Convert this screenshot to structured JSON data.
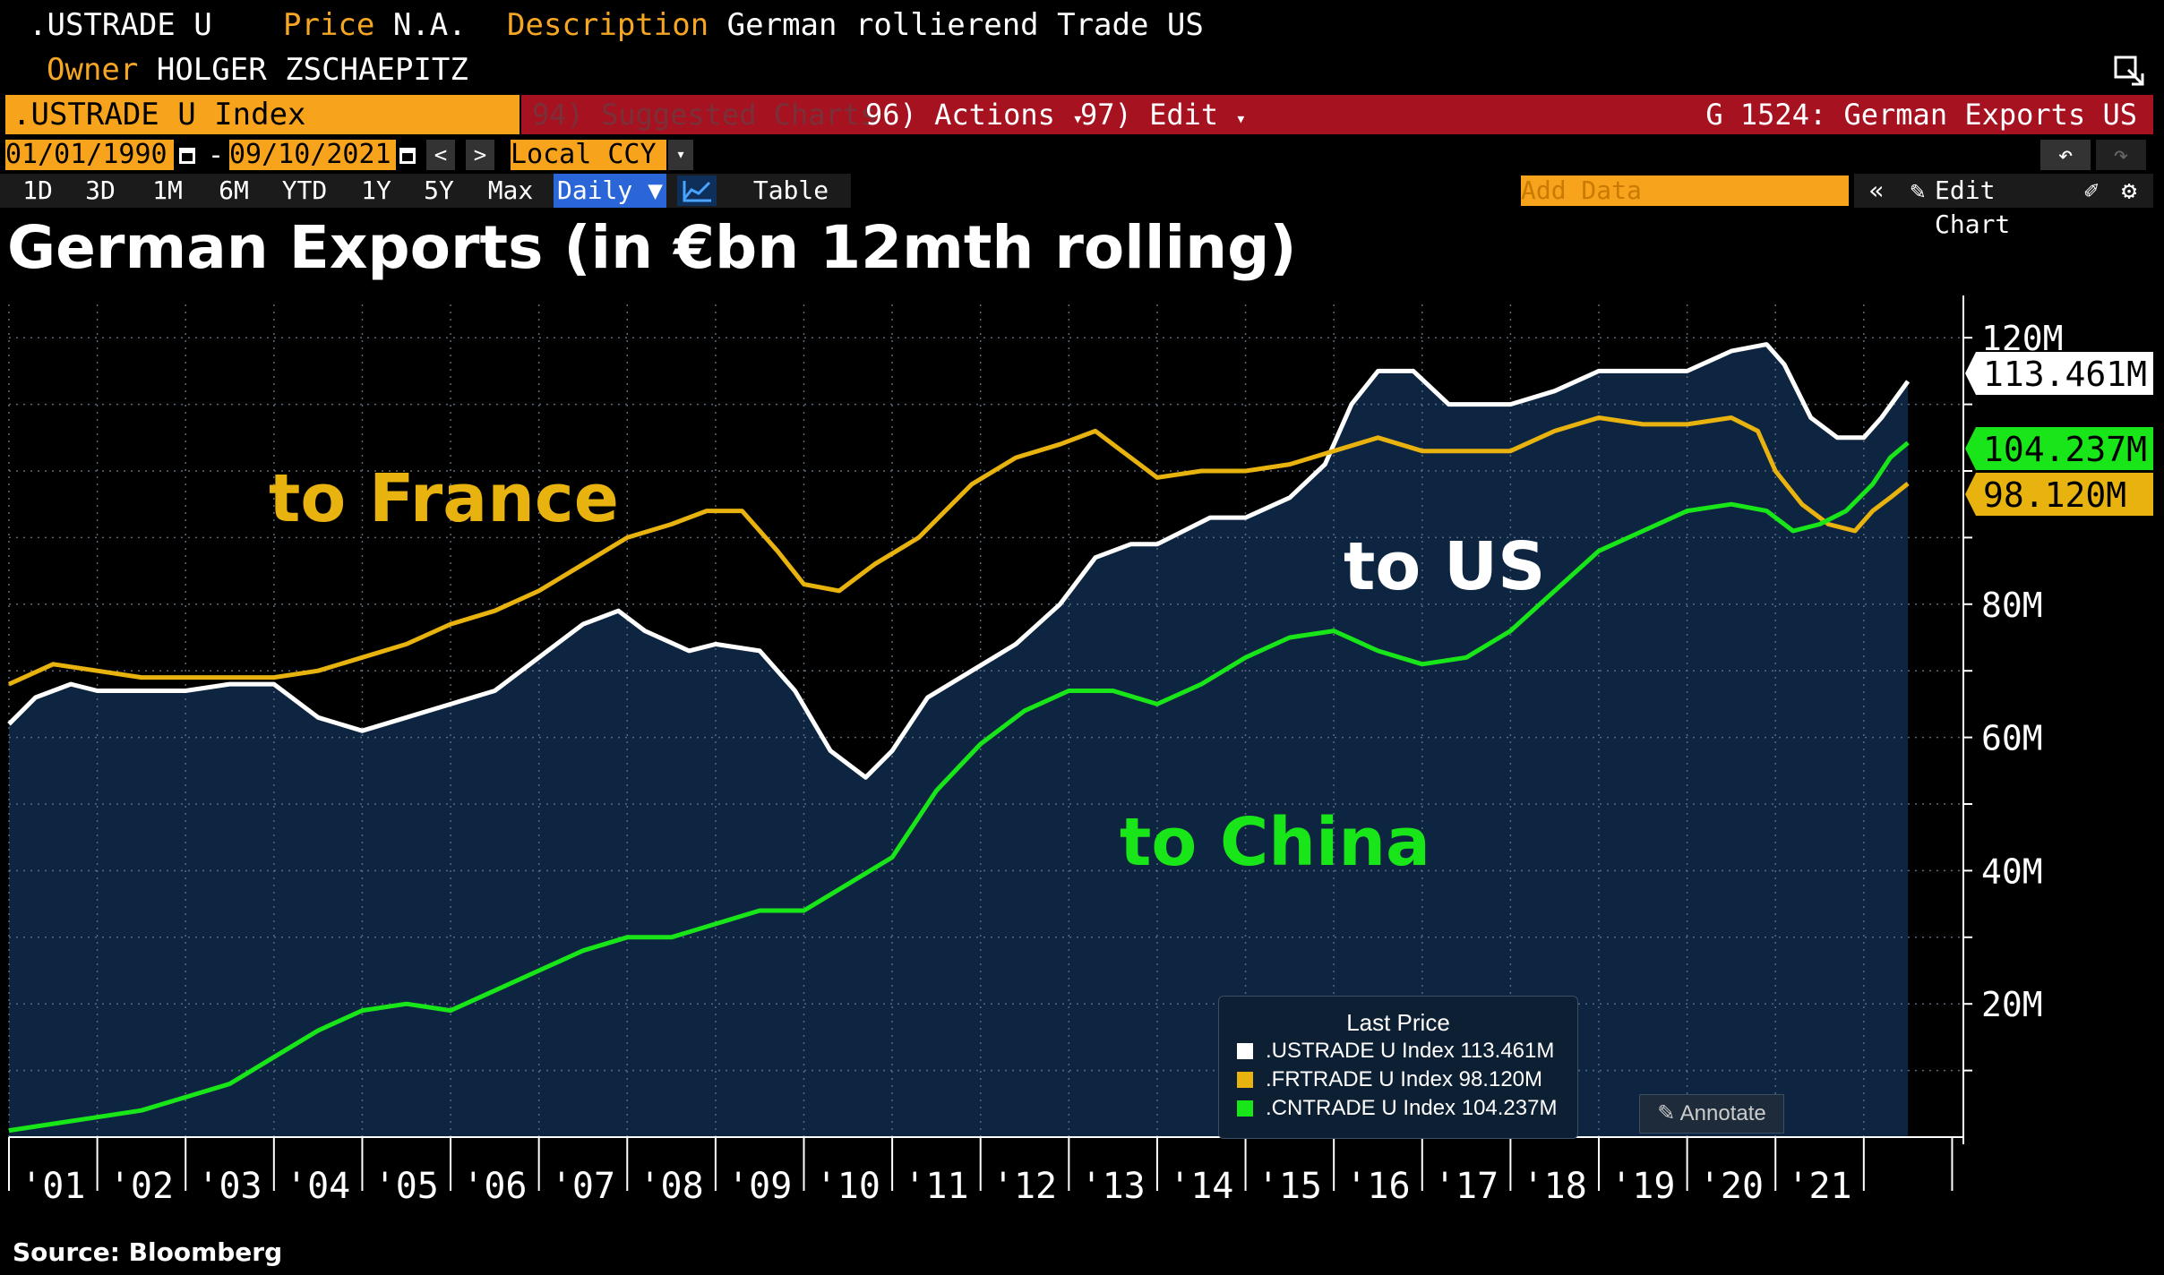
{
  "header": {
    "ticker": ".USTRADE U",
    "price_key": "Price",
    "price_value": "N.A.",
    "desc_key": "Description",
    "desc_value": "German rollierend Trade US",
    "owner_key": "Owner",
    "owner_value": "HOLGER ZSCHAEPITZ"
  },
  "commandbar": {
    "security": ".USTRADE U Index",
    "suggested": "94) Suggested Charts",
    "actions": "96) Actions",
    "edit": "97) Edit",
    "chart_id": "G 1524: German Exports US"
  },
  "datebar": {
    "start": "01/01/1990",
    "sep": "-",
    "end": "09/10/2021",
    "currency": "Local CCY"
  },
  "toolbar": {
    "periods": [
      "1D",
      "3D",
      "1M",
      "6M",
      "YTD",
      "1Y",
      "5Y",
      "Max"
    ],
    "frequency": "Daily ▼",
    "table": "Table",
    "add_data_placeholder": "Add Data",
    "edit_chart": "Edit Chart"
  },
  "chart_title": "German Exports (in €bn 12mth rolling)",
  "colors": {
    "background": "#000000",
    "plot_area": "#0d2540",
    "orange_field": "#f7a31c",
    "red_bar": "#a6121f",
    "us": "#ffffff",
    "france": "#e8b20f",
    "china": "#19e619"
  },
  "chart_data": {
    "type": "line",
    "x_ticks": [
      "'01",
      "'02",
      "'03",
      "'04",
      "'05",
      "'06",
      "'07",
      "'08",
      "'09",
      "'10",
      "'11",
      "'12",
      "'13",
      "'14",
      "'15",
      "'16",
      "'17",
      "'18",
      "'19",
      "'20",
      "'21"
    ],
    "y_ticks": [
      "20M",
      "40M",
      "60M",
      "80M",
      "120M"
    ],
    "ylim": [
      0,
      125
    ],
    "xlim": [
      2000.0,
      2021.6
    ],
    "grid": true,
    "series": [
      {
        "name": ".USTRADE U Index",
        "color": "#ffffff",
        "last_label": "113.461M",
        "points": [
          [
            2000.0,
            62
          ],
          [
            2000.3,
            66
          ],
          [
            2000.7,
            68
          ],
          [
            2001.0,
            67
          ],
          [
            2001.5,
            67
          ],
          [
            2002.0,
            67
          ],
          [
            2002.5,
            68
          ],
          [
            2003.0,
            68
          ],
          [
            2003.5,
            63
          ],
          [
            2004.0,
            61
          ],
          [
            2004.5,
            63
          ],
          [
            2005.0,
            65
          ],
          [
            2005.5,
            67
          ],
          [
            2006.0,
            72
          ],
          [
            2006.5,
            77
          ],
          [
            2006.9,
            79
          ],
          [
            2007.2,
            76
          ],
          [
            2007.7,
            73
          ],
          [
            2008.0,
            74
          ],
          [
            2008.5,
            73
          ],
          [
            2008.9,
            67
          ],
          [
            2009.3,
            58
          ],
          [
            2009.7,
            54
          ],
          [
            2010.0,
            58
          ],
          [
            2010.4,
            66
          ],
          [
            2010.9,
            70
          ],
          [
            2011.4,
            74
          ],
          [
            2011.9,
            80
          ],
          [
            2012.3,
            87
          ],
          [
            2012.7,
            89
          ],
          [
            2013.0,
            89
          ],
          [
            2013.6,
            93
          ],
          [
            2014.0,
            93
          ],
          [
            2014.5,
            96
          ],
          [
            2014.9,
            101
          ],
          [
            2015.2,
            110
          ],
          [
            2015.5,
            115
          ],
          [
            2015.9,
            115
          ],
          [
            2016.3,
            110
          ],
          [
            2016.7,
            110
          ],
          [
            2017.0,
            110
          ],
          [
            2017.5,
            112
          ],
          [
            2018.0,
            115
          ],
          [
            2018.5,
            115
          ],
          [
            2019.0,
            115
          ],
          [
            2019.5,
            118
          ],
          [
            2019.9,
            119
          ],
          [
            2020.1,
            116
          ],
          [
            2020.4,
            108
          ],
          [
            2020.7,
            105
          ],
          [
            2021.0,
            105
          ],
          [
            2021.2,
            108
          ],
          [
            2021.5,
            113.461
          ]
        ]
      },
      {
        "name": ".FRTRADE U Index",
        "color": "#e8b20f",
        "last_label": "98.120M",
        "points": [
          [
            2000.0,
            68
          ],
          [
            2000.5,
            71
          ],
          [
            2001.0,
            70
          ],
          [
            2001.5,
            69
          ],
          [
            2002.0,
            69
          ],
          [
            2002.5,
            69
          ],
          [
            2003.0,
            69
          ],
          [
            2003.5,
            70
          ],
          [
            2004.0,
            72
          ],
          [
            2004.5,
            74
          ],
          [
            2005.0,
            77
          ],
          [
            2005.5,
            79
          ],
          [
            2006.0,
            82
          ],
          [
            2006.5,
            86
          ],
          [
            2007.0,
            90
          ],
          [
            2007.5,
            92
          ],
          [
            2007.9,
            94
          ],
          [
            2008.3,
            94
          ],
          [
            2008.7,
            88
          ],
          [
            2009.0,
            83
          ],
          [
            2009.4,
            82
          ],
          [
            2009.8,
            86
          ],
          [
            2010.3,
            90
          ],
          [
            2010.9,
            98
          ],
          [
            2011.4,
            102
          ],
          [
            2011.9,
            104
          ],
          [
            2012.3,
            106
          ],
          [
            2012.6,
            103
          ],
          [
            2013.0,
            99
          ],
          [
            2013.5,
            100
          ],
          [
            2014.0,
            100
          ],
          [
            2014.5,
            101
          ],
          [
            2015.0,
            103
          ],
          [
            2015.5,
            105
          ],
          [
            2016.0,
            103
          ],
          [
            2016.5,
            103
          ],
          [
            2017.0,
            103
          ],
          [
            2017.5,
            106
          ],
          [
            2018.0,
            108
          ],
          [
            2018.5,
            107
          ],
          [
            2019.0,
            107
          ],
          [
            2019.5,
            108
          ],
          [
            2019.8,
            106
          ],
          [
            2020.0,
            100
          ],
          [
            2020.3,
            95
          ],
          [
            2020.6,
            92
          ],
          [
            2020.9,
            91
          ],
          [
            2021.1,
            94
          ],
          [
            2021.3,
            96
          ],
          [
            2021.5,
            98.12
          ]
        ]
      },
      {
        "name": ".CNTRADE U Index",
        "color": "#19e619",
        "last_label": "104.237M",
        "points": [
          [
            2000.0,
            1
          ],
          [
            2000.5,
            2
          ],
          [
            2001.0,
            3
          ],
          [
            2001.5,
            4
          ],
          [
            2002.0,
            6
          ],
          [
            2002.5,
            8
          ],
          [
            2003.0,
            12
          ],
          [
            2003.5,
            16
          ],
          [
            2004.0,
            19
          ],
          [
            2004.5,
            20
          ],
          [
            2005.0,
            19
          ],
          [
            2005.5,
            22
          ],
          [
            2006.0,
            25
          ],
          [
            2006.5,
            28
          ],
          [
            2007.0,
            30
          ],
          [
            2007.5,
            30
          ],
          [
            2008.0,
            32
          ],
          [
            2008.5,
            34
          ],
          [
            2009.0,
            34
          ],
          [
            2009.5,
            38
          ],
          [
            2010.0,
            42
          ],
          [
            2010.5,
            52
          ],
          [
            2011.0,
            59
          ],
          [
            2011.5,
            64
          ],
          [
            2012.0,
            67
          ],
          [
            2012.5,
            67
          ],
          [
            2013.0,
            65
          ],
          [
            2013.5,
            68
          ],
          [
            2014.0,
            72
          ],
          [
            2014.5,
            75
          ],
          [
            2015.0,
            76
          ],
          [
            2015.5,
            73
          ],
          [
            2016.0,
            71
          ],
          [
            2016.5,
            72
          ],
          [
            2017.0,
            76
          ],
          [
            2017.5,
            82
          ],
          [
            2018.0,
            88
          ],
          [
            2018.5,
            91
          ],
          [
            2019.0,
            94
          ],
          [
            2019.5,
            95
          ],
          [
            2019.9,
            94
          ],
          [
            2020.2,
            91
          ],
          [
            2020.5,
            92
          ],
          [
            2020.8,
            94
          ],
          [
            2021.1,
            98
          ],
          [
            2021.3,
            102
          ],
          [
            2021.5,
            104.237
          ]
        ]
      }
    ],
    "annotations": [
      {
        "text": "to France",
        "color": "#e8b20f"
      },
      {
        "text": "to US",
        "color": "#ffffff"
      },
      {
        "text": "to China",
        "color": "#19e619"
      }
    ],
    "legend": {
      "title": "Last Price",
      "entries": [
        {
          "text": ".USTRADE U Index 113.461M",
          "color": "#ffffff"
        },
        {
          "text": ".FRTRADE U Index 98.120M",
          "color": "#e8b20f"
        },
        {
          "text": ".CNTRADE U Index 104.237M",
          "color": "#19e619"
        }
      ]
    },
    "annotate_button": "Annotate",
    "source": "Source: Bloomberg"
  }
}
